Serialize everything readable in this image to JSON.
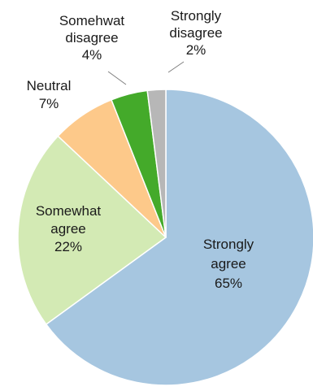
{
  "chart_data": {
    "type": "pie",
    "start": "12 o'clock",
    "direction": "clockwise",
    "legend": "none",
    "slices": [
      {
        "label": [
          "Strongly",
          "agree"
        ],
        "value": 65,
        "value_label": "65%",
        "color": "#a6c6e0"
      },
      {
        "label": [
          "Somewhat",
          "agree"
        ],
        "value": 22,
        "value_label": "22%",
        "color": "#d3eab4"
      },
      {
        "label": [
          "Neutral"
        ],
        "value": 7,
        "value_label": "7%",
        "color": "#fdc98a"
      },
      {
        "label": [
          "Somehwat",
          "disagree"
        ],
        "value": 4,
        "value_label": "4%",
        "color": "#44aa2a"
      },
      {
        "label": [
          "Strongly",
          "disagree"
        ],
        "value": 2,
        "value_label": "2%",
        "color": "#b7b7b7"
      }
    ]
  }
}
